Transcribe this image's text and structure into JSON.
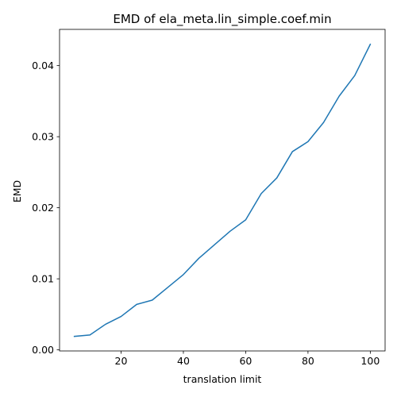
{
  "chart_data": {
    "type": "line",
    "title": "EMD of ela_meta.lin_simple.coef.min",
    "xlabel": "translation limit",
    "ylabel": "EMD",
    "xlim": [
      0.25,
      104.75
    ],
    "ylim": [
      -0.00015,
      0.0451
    ],
    "xticks": [
      20,
      40,
      60,
      80,
      100
    ],
    "xtick_labels": [
      "20",
      "40",
      "60",
      "80",
      "100"
    ],
    "yticks": [
      0.0,
      0.01,
      0.02,
      0.03,
      0.04
    ],
    "ytick_labels": [
      "0.00",
      "0.01",
      "0.02",
      "0.03",
      "0.04"
    ],
    "grid": false,
    "line_color": "#1f77b4",
    "series": [
      {
        "x": [
          5,
          10,
          15,
          20,
          25,
          30,
          35,
          40,
          45,
          50,
          55,
          60,
          65,
          70,
          75,
          80,
          85,
          90,
          95,
          100
        ],
        "y": [
          0.0019,
          0.0021,
          0.0036,
          0.0047,
          0.0064,
          0.007,
          0.0088,
          0.0106,
          0.0129,
          0.0148,
          0.0167,
          0.0183,
          0.022,
          0.0242,
          0.0279,
          0.0293,
          0.032,
          0.0357,
          0.0386,
          0.043
        ]
      }
    ]
  }
}
